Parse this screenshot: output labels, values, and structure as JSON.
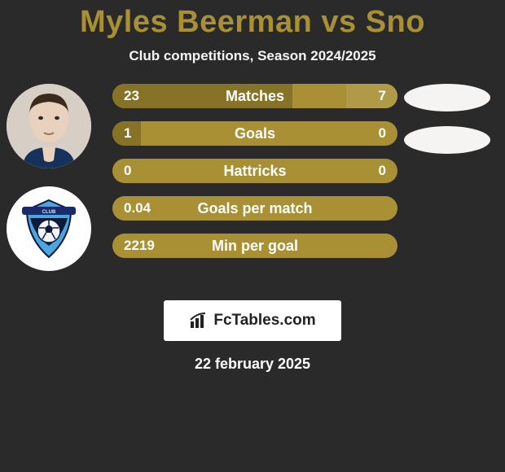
{
  "title_color": "#a99035",
  "title": "Myles Beerman vs Sno",
  "subtitle": "Club competitions, Season 2024/2025",
  "date": "22 february 2025",
  "brand": {
    "text": "FcTables.com",
    "bg": "#ffffff",
    "fg": "#222222"
  },
  "colors": {
    "left": "#877328",
    "mid": "#a99035",
    "right": "#b09a48",
    "ellipse": "#f5f4f2"
  },
  "avatars": {
    "player_bg": "#d7cfc6",
    "club_bg": "#ffffff",
    "club_logo": {
      "outer": "#4aa6e0",
      "ribbon": "#1a2a6b",
      "ball": "#f2f2f2"
    }
  },
  "bars": [
    {
      "label": "Matches",
      "left_val": "23",
      "right_val": "7",
      "left_w": 0.63,
      "right_w": 0.18
    },
    {
      "label": "Goals",
      "left_val": "1",
      "right_val": "0",
      "left_w": 0.1,
      "right_w": 0.0
    },
    {
      "label": "Hattricks",
      "left_val": "0",
      "right_val": "0",
      "left_w": 0.0,
      "right_w": 0.0
    },
    {
      "label": "Goals per match",
      "left_val": "0.04",
      "right_val": "",
      "left_w": 0.0,
      "right_w": 0.0
    },
    {
      "label": "Min per goal",
      "left_val": "2219",
      "right_val": "",
      "left_w": 0.0,
      "right_w": 0.0
    }
  ]
}
